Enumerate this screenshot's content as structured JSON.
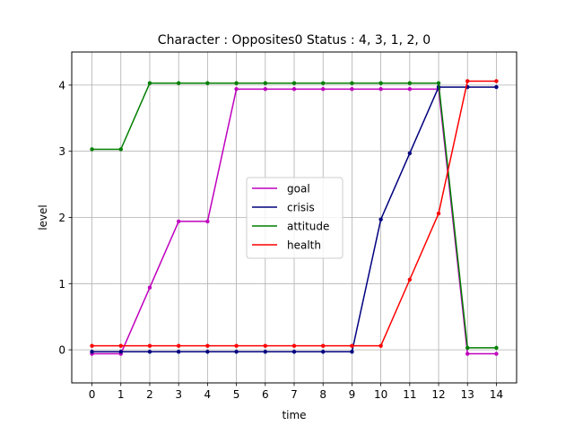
{
  "chart_data": {
    "type": "line",
    "title": "Character : Opposites0 Status : 4, 3, 1, 2, 0",
    "xlabel": "time",
    "ylabel": "level",
    "xlim": [
      -0.7,
      14.7
    ],
    "ylim": [
      -0.5,
      4.5
    ],
    "xticks": [
      0,
      1,
      2,
      3,
      4,
      5,
      6,
      7,
      8,
      9,
      10,
      11,
      12,
      13,
      14
    ],
    "yticks": [
      0,
      1,
      2,
      3,
      4
    ],
    "grid": true,
    "legend_position": "center",
    "x": [
      0,
      1,
      2,
      3,
      4,
      5,
      6,
      7,
      8,
      9,
      10,
      11,
      12,
      13,
      14
    ],
    "series": [
      {
        "name": "goal",
        "color": "#bf00bf",
        "values": [
          -0.06,
          -0.06,
          0.94,
          1.94,
          1.94,
          3.94,
          3.94,
          3.94,
          3.94,
          3.94,
          3.94,
          3.94,
          3.94,
          -0.06,
          -0.06
        ]
      },
      {
        "name": "crisis",
        "color": "#00007f",
        "values": [
          -0.03,
          -0.03,
          -0.03,
          -0.03,
          -0.03,
          -0.03,
          -0.03,
          -0.03,
          -0.03,
          -0.03,
          1.97,
          2.97,
          3.97,
          3.97,
          3.97
        ]
      },
      {
        "name": "attitude",
        "color": "#007f00",
        "values": [
          3.03,
          3.03,
          4.03,
          4.03,
          4.03,
          4.03,
          4.03,
          4.03,
          4.03,
          4.03,
          4.03,
          4.03,
          4.03,
          0.03,
          0.03
        ]
      },
      {
        "name": "health",
        "color": "#ff0000",
        "values": [
          0.06,
          0.06,
          0.06,
          0.06,
          0.06,
          0.06,
          0.06,
          0.06,
          0.06,
          0.06,
          0.06,
          1.06,
          2.06,
          4.06,
          4.06
        ]
      }
    ]
  }
}
